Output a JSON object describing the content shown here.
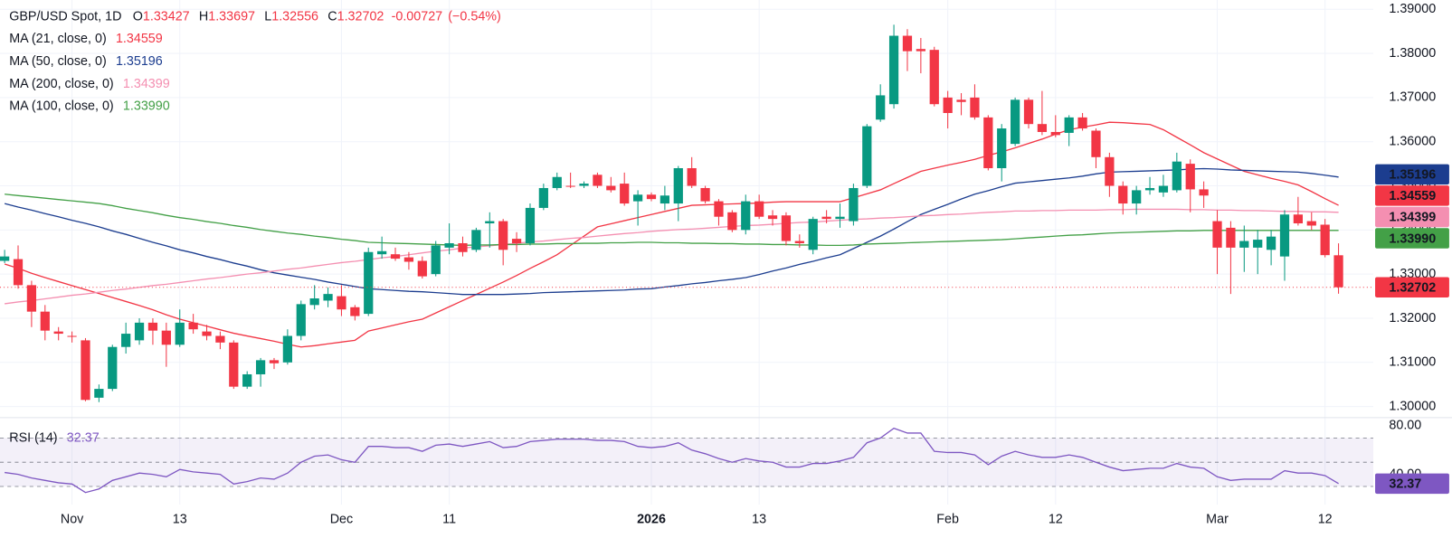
{
  "chart_data": {
    "type": "candlestick",
    "title": "GBP/USD Spot, 1D",
    "ohlc_prefixes": [
      "O",
      "H",
      "L",
      "C"
    ],
    "change": "-0.00727",
    "change_pct": "(−0.54%)",
    "categories": [
      null,
      null,
      null,
      null,
      null,
      "Nov",
      null,
      null,
      null,
      null,
      null,
      null,
      null,
      "13",
      null,
      null,
      null,
      null,
      null,
      null,
      null,
      null,
      null,
      null,
      null,
      "Dec",
      null,
      null,
      null,
      null,
      null,
      null,
      null,
      "11",
      null,
      null,
      null,
      null,
      null,
      null,
      null,
      null,
      null,
      null,
      null,
      null,
      null,
      null,
      "2026",
      null,
      null,
      null,
      null,
      null,
      null,
      null,
      "13",
      null,
      null,
      null,
      null,
      null,
      null,
      null,
      null,
      null,
      null,
      null,
      null,
      null,
      "Feb",
      null,
      null,
      null,
      null,
      null,
      null,
      null,
      "12",
      null,
      null,
      null,
      null,
      null,
      null,
      null,
      null,
      null,
      null,
      null,
      "Mar",
      null,
      null,
      null,
      null,
      null,
      null,
      null,
      "12",
      null
    ],
    "open": [
      1.333,
      1.3334,
      1.3275,
      1.3215,
      1.317,
      1.316,
      1.315,
      1.302,
      1.304,
      1.3135,
      1.315,
      1.319,
      1.3172,
      1.314,
      1.319,
      1.317,
      1.316,
      1.3145,
      1.3045,
      1.3073,
      1.3105,
      1.31,
      1.316,
      1.323,
      1.324,
      1.325,
      1.3225,
      1.321,
      1.3345,
      1.3345,
      1.3338,
      1.333,
      1.33,
      1.336,
      1.337,
      1.3355,
      1.3415,
      1.342,
      1.338,
      1.337,
      1.345,
      1.3495,
      1.35,
      1.35,
      1.3525,
      1.35,
      1.3505,
      1.3465,
      1.348,
      1.346,
      1.346,
      1.354,
      1.3495,
      1.3465,
      1.344,
      1.34,
      1.3465,
      1.3433,
      1.3433,
      1.3375,
      1.3355,
      1.343,
      1.3425,
      1.342,
      1.35,
      1.365,
      1.3685,
      1.384,
      1.381,
      1.3808,
      1.37,
      1.3695,
      1.37,
      1.3655,
      1.354,
      1.3595,
      1.3695,
      1.364,
      1.3622,
      1.362,
      1.3655,
      1.3625,
      1.3565,
      1.35,
      1.346,
      1.349,
      1.3485,
      1.349,
      1.355,
      1.3492,
      1.342,
      1.3405,
      1.336,
      1.336,
      1.3355,
      1.334,
      1.3435,
      1.342,
      1.3412,
      1.33427
    ],
    "high": [
      1.3355,
      1.3365,
      1.3285,
      1.323,
      1.318,
      1.317,
      1.3155,
      1.305,
      1.314,
      1.319,
      1.32,
      1.32,
      1.319,
      1.322,
      1.321,
      1.3185,
      1.317,
      1.315,
      1.308,
      1.311,
      1.311,
      1.3175,
      1.324,
      1.3275,
      1.327,
      1.3275,
      1.323,
      1.336,
      1.3385,
      1.336,
      1.335,
      1.334,
      1.3375,
      1.3415,
      1.3385,
      1.3405,
      1.344,
      1.3425,
      1.3395,
      1.346,
      1.3505,
      1.353,
      1.353,
      1.351,
      1.353,
      1.352,
      1.353,
      1.349,
      1.3485,
      1.35,
      1.3545,
      1.3565,
      1.35,
      1.347,
      1.3445,
      1.348,
      1.348,
      1.3445,
      1.344,
      1.339,
      1.343,
      1.3445,
      1.346,
      1.3505,
      1.364,
      1.373,
      1.3865,
      1.3855,
      1.3835,
      1.3815,
      1.3715,
      1.371,
      1.373,
      1.366,
      1.364,
      1.37,
      1.37,
      1.3715,
      1.366,
      1.366,
      1.3665,
      1.363,
      1.3575,
      1.351,
      1.35,
      1.352,
      1.3525,
      1.3575,
      1.356,
      1.351,
      1.3445,
      1.342,
      1.341,
      1.34,
      1.34,
      1.3445,
      1.3475,
      1.344,
      1.3425,
      1.33697
    ],
    "low": [
      1.3325,
      1.3267,
      1.318,
      1.315,
      1.315,
      1.3145,
      1.3012,
      1.301,
      1.3035,
      1.312,
      1.314,
      1.314,
      1.309,
      1.3135,
      1.3165,
      1.315,
      1.313,
      1.304,
      1.304,
      1.3045,
      1.3085,
      1.3095,
      1.315,
      1.322,
      1.3225,
      1.3205,
      1.3195,
      1.3205,
      1.3335,
      1.333,
      1.331,
      1.329,
      1.3295,
      1.3345,
      1.334,
      1.335,
      1.336,
      1.332,
      1.335,
      1.3365,
      1.3445,
      1.349,
      1.3495,
      1.3495,
      1.3495,
      1.3485,
      1.3455,
      1.341,
      1.3465,
      1.3445,
      1.342,
      1.3495,
      1.346,
      1.341,
      1.3395,
      1.339,
      1.3425,
      1.341,
      1.3365,
      1.336,
      1.3345,
      1.3415,
      1.3405,
      1.341,
      1.3495,
      1.3645,
      1.3675,
      1.376,
      1.3755,
      1.368,
      1.363,
      1.366,
      1.365,
      1.3535,
      1.351,
      1.359,
      1.363,
      1.3615,
      1.361,
      1.359,
      1.3625,
      1.354,
      1.3475,
      1.3435,
      1.3435,
      1.348,
      1.3475,
      1.3485,
      1.344,
      1.345,
      1.33,
      1.3255,
      1.3305,
      1.33,
      1.332,
      1.3285,
      1.341,
      1.34,
      1.3338,
      1.32556
    ],
    "close": [
      1.334,
      1.3275,
      1.3215,
      1.3172,
      1.3165,
      1.3158,
      1.3015,
      1.304,
      1.3135,
      1.3165,
      1.319,
      1.3172,
      1.314,
      1.319,
      1.3175,
      1.316,
      1.3145,
      1.3045,
      1.3073,
      1.3105,
      1.3098,
      1.316,
      1.3232,
      1.3245,
      1.3255,
      1.322,
      1.3205,
      1.335,
      1.3352,
      1.3335,
      1.3328,
      1.3295,
      1.3365,
      1.337,
      1.335,
      1.34,
      1.342,
      1.3355,
      1.337,
      1.345,
      1.3495,
      1.352,
      1.3498,
      1.3505,
      1.35,
      1.349,
      1.346,
      1.348,
      1.347,
      1.3478,
      1.354,
      1.35,
      1.3465,
      1.343,
      1.34,
      1.3465,
      1.343,
      1.3425,
      1.3375,
      1.337,
      1.3425,
      1.3425,
      1.343,
      1.3495,
      1.3635,
      1.3705,
      1.384,
      1.3805,
      1.3805,
      1.3685,
      1.3665,
      1.369,
      1.3655,
      1.354,
      1.363,
      1.3695,
      1.364,
      1.3622,
      1.3615,
      1.3655,
      1.363,
      1.3565,
      1.35,
      1.346,
      1.349,
      1.3495,
      1.35,
      1.3555,
      1.3492,
      1.3478,
      1.336,
      1.336,
      1.3375,
      1.3378,
      1.3385,
      1.3435,
      1.3415,
      1.341,
      1.3343,
      1.32702
    ],
    "up_color": "#089981",
    "down_color": "#f23645",
    "ylim": [
      1.2977,
      1.3921
    ],
    "yticks": [
      {
        "value": 1.3,
        "label": "1.30000"
      },
      {
        "value": 1.31,
        "label": "1.31000"
      },
      {
        "value": 1.32,
        "label": "1.32000"
      },
      {
        "value": 1.33,
        "label": "1.33000"
      },
      {
        "value": 1.34,
        "label": "1.34000"
      },
      {
        "value": 1.35,
        "label": "1.35000"
      },
      {
        "value": 1.36,
        "label": "1.36000"
      },
      {
        "value": 1.37,
        "label": "1.37000"
      },
      {
        "value": 1.38,
        "label": "1.38000"
      },
      {
        "value": 1.39,
        "label": "1.39000"
      }
    ],
    "grid": true,
    "series": [
      {
        "name": "MA (21, close, 0)",
        "color": "#f23645",
        "last": 1.34559,
        "values": [
          1.3323,
          1.3313,
          1.3302,
          1.3292,
          1.3283,
          1.3274,
          1.3265,
          1.3256,
          1.3247,
          1.3238,
          1.3229,
          1.3219,
          1.3208,
          1.3198,
          1.319,
          1.3182,
          1.3174,
          1.3166,
          1.316,
          1.3154,
          1.3148,
          1.3141,
          1.3135,
          1.3138,
          1.3142,
          1.3146,
          1.315,
          1.3171,
          1.3178,
          1.3185,
          1.3192,
          1.3198,
          1.3212,
          1.3226,
          1.324,
          1.3254,
          1.3268,
          1.3282,
          1.3297,
          1.3313,
          1.3328,
          1.3344,
          1.3365,
          1.3386,
          1.3407,
          1.3414,
          1.3421,
          1.3428,
          1.3435,
          1.3442,
          1.3449,
          1.3456,
          1.3457,
          1.3458,
          1.3459,
          1.346,
          1.3461,
          1.3463,
          1.3464,
          1.3464,
          1.3464,
          1.3464,
          1.3464,
          1.3473,
          1.3482,
          1.3491,
          1.3505,
          1.3519,
          1.3533,
          1.354,
          1.3547,
          1.3553,
          1.356,
          1.3569,
          1.3577,
          1.3586,
          1.3596,
          1.3606,
          1.3617,
          1.3627,
          1.3633,
          1.3638,
          1.3644,
          1.3643,
          1.3641,
          1.3639,
          1.3627,
          1.361,
          1.3593,
          1.3575,
          1.3561,
          1.3547,
          1.3533,
          1.3525,
          1.3517,
          1.351,
          1.3502,
          1.3487,
          1.3471,
          1.3456
        ]
      },
      {
        "name": "MA (50, close, 0)",
        "color": "#1c3d8f",
        "last": 1.35196,
        "values": [
          1.346,
          1.3452,
          1.3445,
          1.3437,
          1.343,
          1.3422,
          1.3415,
          1.3407,
          1.3398,
          1.339,
          1.3381,
          1.3372,
          1.3364,
          1.3355,
          1.3348,
          1.334,
          1.3333,
          1.3325,
          1.3318,
          1.331,
          1.3303,
          1.3298,
          1.3293,
          1.3288,
          1.3282,
          1.3277,
          1.3272,
          1.3267,
          1.3265,
          1.3263,
          1.3261,
          1.326,
          1.3258,
          1.3256,
          1.3254,
          1.3254,
          1.3254,
          1.3254,
          1.3255,
          1.3256,
          1.3258,
          1.3259,
          1.326,
          1.3261,
          1.3262,
          1.3263,
          1.3264,
          1.3266,
          1.3267,
          1.3271,
          1.3274,
          1.3278,
          1.3281,
          1.3285,
          1.3288,
          1.3292,
          1.3299,
          1.3307,
          1.3314,
          1.3322,
          1.3329,
          1.3337,
          1.3344,
          1.3358,
          1.3372,
          1.3386,
          1.3402,
          1.3419,
          1.3435,
          1.3447,
          1.3458,
          1.347,
          1.3481,
          1.3489,
          1.3498,
          1.3506,
          1.3509,
          1.3512,
          1.3515,
          1.3518,
          1.3522,
          1.3527,
          1.3531,
          1.3532,
          1.3533,
          1.3534,
          1.3535,
          1.3536,
          1.3538,
          1.3539,
          1.3538,
          1.3536,
          1.3535,
          1.3534,
          1.3533,
          1.3532,
          1.3531,
          1.3528,
          1.3524,
          1.352
        ]
      },
      {
        "name": "MA (200, close, 0)",
        "color": "#f48fb1",
        "last": 1.34399,
        "values": [
          1.3233,
          1.3237,
          1.324,
          1.3244,
          1.3248,
          1.3252,
          1.3255,
          1.3259,
          1.3263,
          1.3266,
          1.327,
          1.3274,
          1.3277,
          1.3281,
          1.3285,
          1.3289,
          1.3292,
          1.3296,
          1.33,
          1.3303,
          1.3307,
          1.3311,
          1.3314,
          1.3318,
          1.3322,
          1.3326,
          1.3329,
          1.3333,
          1.3337,
          1.334,
          1.3344,
          1.3348,
          1.3352,
          1.3355,
          1.3359,
          1.3362,
          1.3364,
          1.3367,
          1.337,
          1.3373,
          1.3375,
          1.3378,
          1.3381,
          1.3383,
          1.3386,
          1.3389,
          1.3392,
          1.3394,
          1.3397,
          1.3399,
          1.3401,
          1.3402,
          1.3404,
          1.3406,
          1.3408,
          1.341,
          1.3411,
          1.3413,
          1.3415,
          1.3417,
          1.3418,
          1.342,
          1.3422,
          1.3424,
          1.3425,
          1.3427,
          1.3428,
          1.343,
          1.3432,
          1.3433,
          1.3435,
          1.3436,
          1.3438,
          1.344,
          1.3441,
          1.3443,
          1.3443,
          1.3444,
          1.3444,
          1.3445,
          1.3445,
          1.3445,
          1.3446,
          1.3446,
          1.3447,
          1.3447,
          1.3447,
          1.3447,
          1.3446,
          1.3446,
          1.3445,
          1.3445,
          1.3444,
          1.3444,
          1.3443,
          1.3442,
          1.3442,
          1.3441,
          1.3441,
          1.344
        ]
      },
      {
        "name": "MA (100, close, 0)",
        "color": "#43a047",
        "last": {
          "value": 1.3399,
          "label": "1.33990"
        },
        "values": [
          1.3481,
          1.3478,
          1.3475,
          1.3472,
          1.3469,
          1.3466,
          1.3463,
          1.346,
          1.3455,
          1.3449,
          1.3444,
          1.3439,
          1.3433,
          1.3428,
          1.3424,
          1.3419,
          1.3415,
          1.341,
          1.3406,
          1.3401,
          1.3397,
          1.3393,
          1.339,
          1.3386,
          1.3383,
          1.3379,
          1.3376,
          1.3372,
          1.3371,
          1.337,
          1.3369,
          1.3368,
          1.3367,
          1.3366,
          1.3365,
          1.3366,
          1.3366,
          1.3367,
          1.3367,
          1.3368,
          1.3368,
          1.3369,
          1.3369,
          1.337,
          1.337,
          1.3371,
          1.3371,
          1.3372,
          1.3372,
          1.3371,
          1.3371,
          1.337,
          1.337,
          1.3369,
          1.3369,
          1.3368,
          1.3368,
          1.3367,
          1.3367,
          1.3366,
          1.3366,
          1.3365,
          1.3365,
          1.3366,
          1.3368,
          1.3369,
          1.337,
          1.3371,
          1.3372,
          1.3373,
          1.3374,
          1.3375,
          1.3376,
          1.3377,
          1.3378,
          1.338,
          1.3382,
          1.3384,
          1.3386,
          1.3388,
          1.3389,
          1.3391,
          1.3393,
          1.3394,
          1.3395,
          1.3396,
          1.3397,
          1.3398,
          1.3398,
          1.3399,
          1.3399,
          1.3399,
          1.3399,
          1.3399,
          1.3399,
          1.3399,
          1.3399,
          1.3399,
          1.3399,
          1.3399
        ]
      }
    ],
    "rsi": {
      "name": "RSI (14)",
      "color": "#7e57c2",
      "ylim": [
        15,
        86
      ],
      "yticks": [
        {
          "value": 80,
          "label": "80.00"
        },
        {
          "value": 40,
          "label": "40.00"
        }
      ],
      "levels": [
        70,
        50,
        30
      ],
      "values": [
        41.5,
        40,
        37,
        35,
        33,
        32,
        25,
        28,
        35,
        38,
        41,
        40,
        38,
        44,
        42,
        41,
        40,
        32,
        34,
        37,
        36,
        41,
        50,
        55,
        56,
        52,
        50,
        63,
        63,
        62,
        62,
        59,
        64,
        65,
        63,
        65,
        67,
        62,
        63,
        67,
        68,
        69,
        69,
        69,
        68,
        68,
        67,
        63,
        62,
        63,
        66,
        60,
        57,
        53,
        50,
        53,
        51,
        50,
        46,
        46,
        49,
        49,
        51,
        54,
        66,
        70,
        78,
        74,
        74,
        59,
        58,
        58,
        56,
        48,
        55,
        59,
        56,
        54,
        54,
        56,
        54,
        50,
        46,
        43,
        44,
        45,
        45,
        49,
        46,
        45,
        38,
        35,
        36,
        36,
        36,
        43,
        41,
        41,
        39,
        32.37
      ]
    }
  }
}
